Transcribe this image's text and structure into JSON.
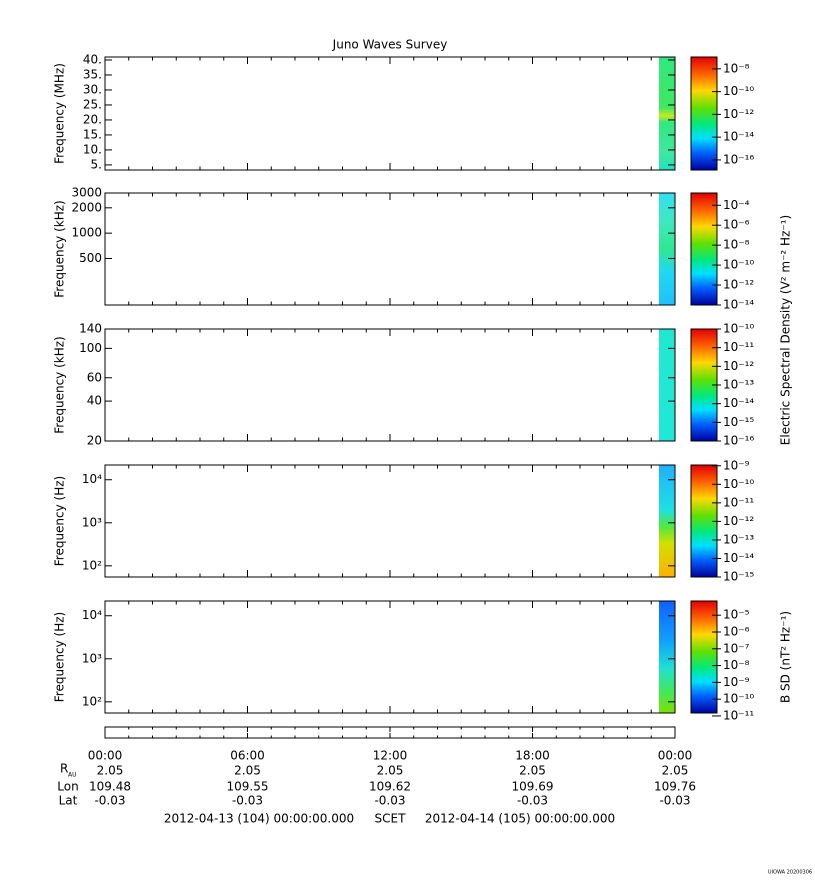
{
  "title": "Juno Waves Survey",
  "chart_data": [
    {
      "type": "spectrogram",
      "ylabel": "Frequency (MHz)",
      "log_y": false,
      "ylim": [
        3.3,
        41
      ],
      "yticks": [
        {
          "value": 40,
          "label": "40."
        },
        {
          "value": 35,
          "label": "35."
        },
        {
          "value": 30,
          "label": "30."
        },
        {
          "value": 25,
          "label": "25."
        },
        {
          "value": 20,
          "label": "20."
        },
        {
          "value": 15,
          "label": "15."
        },
        {
          "value": 10,
          "label": "10."
        },
        {
          "value": 5,
          "label": "5."
        }
      ],
      "clim": [
        1.1e-07,
        1.3e-17
      ],
      "cticks": [
        {
          "value": 1e-08,
          "label": "10⁻⁸"
        },
        {
          "value": 1e-10,
          "label": "10⁻¹⁰"
        },
        {
          "value": 1e-12,
          "label": "10⁻¹²"
        },
        {
          "value": 1e-14,
          "label": "10⁻¹⁴"
        },
        {
          "value": 1e-16,
          "label": "10⁻¹⁶"
        }
      ]
    },
    {
      "type": "spectrogram",
      "ylabel": "Frequency (kHz)",
      "log_y": true,
      "ylim": [
        140,
        3000
      ],
      "yticks": [
        3000,
        2000,
        1000,
        500
      ],
      "clim": [
        0.0017,
        1e-14
      ],
      "cticks": [
        {
          "value": 0.0001,
          "label": "10⁻⁴"
        },
        {
          "value": 1e-06,
          "label": "10⁻⁶"
        },
        {
          "value": 1e-08,
          "label": "10⁻⁸"
        },
        {
          "value": 1e-10,
          "label": "10⁻¹⁰"
        },
        {
          "value": 1e-12,
          "label": "10⁻¹²"
        },
        {
          "value": 1e-14,
          "label": "10⁻¹⁴"
        }
      ]
    },
    {
      "type": "spectrogram",
      "ylabel": "Frequency (kHz)",
      "log_y": true,
      "ylim": [
        20,
        140
      ],
      "yticks": [
        140,
        100,
        60,
        40,
        20
      ],
      "clim": [
        1e-10,
        1e-16
      ],
      "cticks": [
        {
          "value": 1e-10,
          "label": "10⁻¹⁰"
        },
        {
          "value": 1e-11,
          "label": "10⁻¹¹"
        },
        {
          "value": 1e-12,
          "label": "10⁻¹²"
        },
        {
          "value": 1e-13,
          "label": "10⁻¹³"
        },
        {
          "value": 1e-14,
          "label": "10⁻¹⁴"
        },
        {
          "value": 1e-15,
          "label": "10⁻¹⁵"
        },
        {
          "value": 1e-16,
          "label": "10⁻¹⁶"
        }
      ]
    },
    {
      "type": "spectrogram",
      "ylabel": "Frequency (Hz)",
      "log_y": true,
      "ylim": [
        55,
        22000
      ],
      "yticks": [
        {
          "value": 10000,
          "label": "10⁴"
        },
        {
          "value": 1000,
          "label": "10³"
        },
        {
          "value": 100,
          "label": "10²"
        }
      ],
      "clim": [
        1.1e-09,
        1e-15
      ],
      "cticks": [
        {
          "value": 1e-09,
          "label": "10⁻⁹"
        },
        {
          "value": 1e-10,
          "label": "10⁻¹⁰"
        },
        {
          "value": 1e-11,
          "label": "10⁻¹¹"
        },
        {
          "value": 1e-12,
          "label": "10⁻¹²"
        },
        {
          "value": 1e-13,
          "label": "10⁻¹³"
        },
        {
          "value": 1e-14,
          "label": "10⁻¹⁴"
        },
        {
          "value": 1e-15,
          "label": "10⁻¹⁵"
        }
      ]
    },
    {
      "type": "spectrogram",
      "ylabel": "Frequency (Hz)",
      "log_y": true,
      "ylim": [
        55,
        22000
      ],
      "yticks": [
        {
          "value": 10000,
          "label": "10⁴"
        },
        {
          "value": 1000,
          "label": "10³"
        },
        {
          "value": 100,
          "label": "10²"
        }
      ],
      "clim": [
        7e-05,
        1.5e-11
      ],
      "cticks": [
        {
          "value": 1e-05,
          "label": "10⁻⁵"
        },
        {
          "value": 1e-06,
          "label": "10⁻⁶"
        },
        {
          "value": 1e-07,
          "label": "10⁻⁷"
        },
        {
          "value": 1e-08,
          "label": "10⁻⁸"
        },
        {
          "value": 1e-09,
          "label": "10⁻⁹"
        },
        {
          "value": 1e-10,
          "label": "10⁻¹⁰"
        },
        {
          "value": 1e-11,
          "label": "10⁻¹¹"
        }
      ]
    }
  ],
  "colorbar_labels": [
    "Electric Spectral Density (V² m⁻² Hz⁻¹)",
    "B SD (nT² Hz⁻¹)"
  ],
  "time_axis": {
    "xlim": [
      0,
      24
    ],
    "xticks": [
      {
        "value": 0,
        "label": "00:00"
      },
      {
        "value": 6,
        "label": "06:00"
      },
      {
        "value": 12,
        "label": "12:00"
      },
      {
        "value": 18,
        "label": "18:00"
      },
      {
        "value": 24,
        "label": "00:00"
      }
    ],
    "xminorticks": [
      1,
      2,
      3,
      4,
      5,
      7,
      8,
      9,
      10,
      11,
      13,
      14,
      15,
      16,
      17,
      19,
      20,
      21,
      22,
      23
    ]
  },
  "ephemeris": [
    {
      "label": "R",
      "sub": "AU",
      "values": [
        "2.05",
        "2.05",
        "2.05",
        "2.05",
        "2.05"
      ]
    },
    {
      "label": "Lon",
      "values": [
        "109.48",
        "109.55",
        "109.62",
        "109.69",
        "109.76"
      ]
    },
    {
      "label": "Lat",
      "values": [
        "-0.03",
        "-0.03",
        "-0.03",
        "-0.03",
        "-0.03"
      ]
    }
  ],
  "footer": [
    "2012-04-13 (104) 00:00:00.000",
    "SCET",
    "2012-04-14 (105) 00:00:00.000"
  ],
  "stamp": "UIOWA 20200306"
}
